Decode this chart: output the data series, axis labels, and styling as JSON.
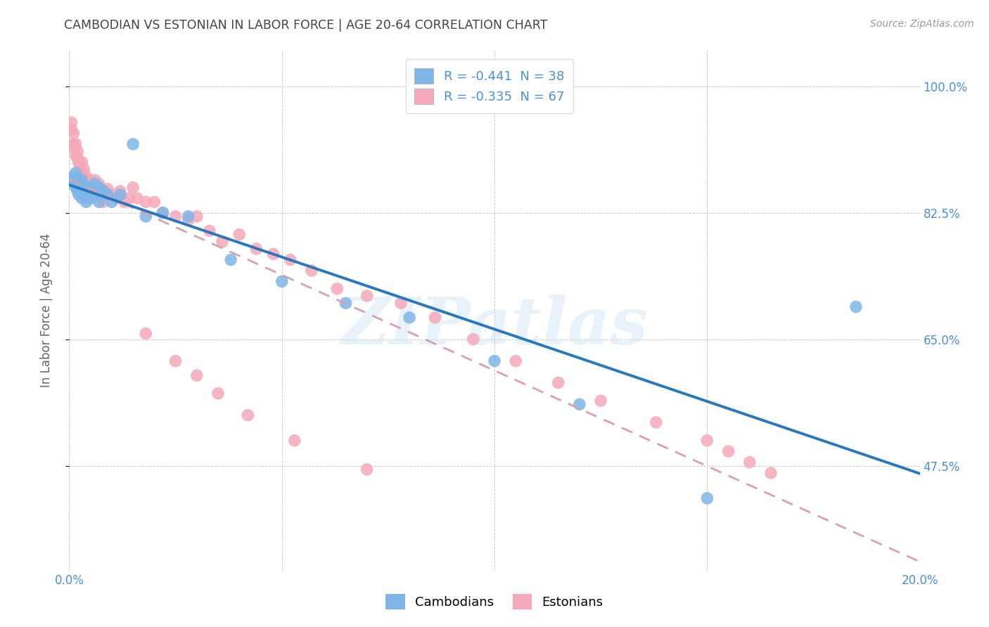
{
  "title": "CAMBODIAN VS ESTONIAN IN LABOR FORCE | AGE 20-64 CORRELATION CHART",
  "source": "Source: ZipAtlas.com",
  "ylabel": "In Labor Force | Age 20-64",
  "xlim": [
    0.0,
    0.2
  ],
  "ylim": [
    0.33,
    1.05
  ],
  "yticks": [
    0.475,
    0.65,
    0.825,
    1.0
  ],
  "ytick_labels": [
    "47.5%",
    "65.0%",
    "82.5%",
    "100.0%"
  ],
  "xticks": [
    0.0,
    0.05,
    0.1,
    0.15,
    0.2
  ],
  "xtick_labels": [
    "0.0%",
    "",
    "",
    "",
    "20.0%"
  ],
  "legend_entries": [
    {
      "label": "R = -0.441  N = 38",
      "color": "#7EB6E8"
    },
    {
      "label": "R = -0.335  N = 67",
      "color": "#F5A8B8"
    }
  ],
  "watermark": "ZIPatlas",
  "cambodian_color": "#7EB6E8",
  "estonian_color": "#F5A8B8",
  "regression_cambodian_color": "#2878C0",
  "regression_estonian_color": "#D8A0B0",
  "background_color": "#FFFFFF",
  "grid_color": "#CCCCCC",
  "title_color": "#444444",
  "axis_color": "#4A90D9",
  "cambodian_x": [
    0.0008,
    0.001,
    0.0012,
    0.0015,
    0.0015,
    0.002,
    0.002,
    0.0022,
    0.0025,
    0.003,
    0.003,
    0.003,
    0.0035,
    0.004,
    0.004,
    0.0045,
    0.005,
    0.005,
    0.006,
    0.006,
    0.007,
    0.007,
    0.008,
    0.009,
    0.01,
    0.012,
    0.015,
    0.018,
    0.022,
    0.028,
    0.038,
    0.05,
    0.065,
    0.08,
    0.1,
    0.12,
    0.15,
    0.185
  ],
  "cambodian_y": [
    0.87,
    0.875,
    0.865,
    0.86,
    0.88,
    0.855,
    0.87,
    0.85,
    0.865,
    0.855,
    0.845,
    0.87,
    0.86,
    0.855,
    0.84,
    0.86,
    0.858,
    0.845,
    0.865,
    0.85,
    0.86,
    0.84,
    0.855,
    0.85,
    0.84,
    0.85,
    0.92,
    0.82,
    0.825,
    0.82,
    0.76,
    0.73,
    0.7,
    0.68,
    0.62,
    0.56,
    0.43,
    0.695
  ],
  "estonian_x": [
    0.0005,
    0.0005,
    0.001,
    0.001,
    0.0012,
    0.0015,
    0.0015,
    0.002,
    0.002,
    0.0022,
    0.0025,
    0.003,
    0.003,
    0.003,
    0.0035,
    0.004,
    0.004,
    0.0045,
    0.005,
    0.005,
    0.006,
    0.006,
    0.007,
    0.007,
    0.008,
    0.008,
    0.009,
    0.01,
    0.011,
    0.012,
    0.013,
    0.014,
    0.015,
    0.016,
    0.018,
    0.02,
    0.022,
    0.025,
    0.028,
    0.03,
    0.033,
    0.036,
    0.04,
    0.044,
    0.048,
    0.052,
    0.057,
    0.063,
    0.07,
    0.078,
    0.086,
    0.095,
    0.105,
    0.115,
    0.125,
    0.138,
    0.15,
    0.155,
    0.16,
    0.165,
    0.018,
    0.025,
    0.03,
    0.035,
    0.042,
    0.053,
    0.07
  ],
  "estonian_y": [
    0.95,
    0.94,
    0.92,
    0.935,
    0.915,
    0.905,
    0.92,
    0.9,
    0.91,
    0.895,
    0.89,
    0.88,
    0.895,
    0.875,
    0.885,
    0.875,
    0.86,
    0.87,
    0.868,
    0.855,
    0.87,
    0.855,
    0.865,
    0.85,
    0.855,
    0.84,
    0.858,
    0.85,
    0.845,
    0.855,
    0.84,
    0.845,
    0.86,
    0.845,
    0.84,
    0.84,
    0.825,
    0.82,
    0.815,
    0.82,
    0.8,
    0.785,
    0.795,
    0.775,
    0.768,
    0.76,
    0.745,
    0.72,
    0.71,
    0.7,
    0.68,
    0.65,
    0.62,
    0.59,
    0.565,
    0.535,
    0.51,
    0.495,
    0.48,
    0.465,
    0.658,
    0.62,
    0.6,
    0.575,
    0.545,
    0.51,
    0.47
  ]
}
